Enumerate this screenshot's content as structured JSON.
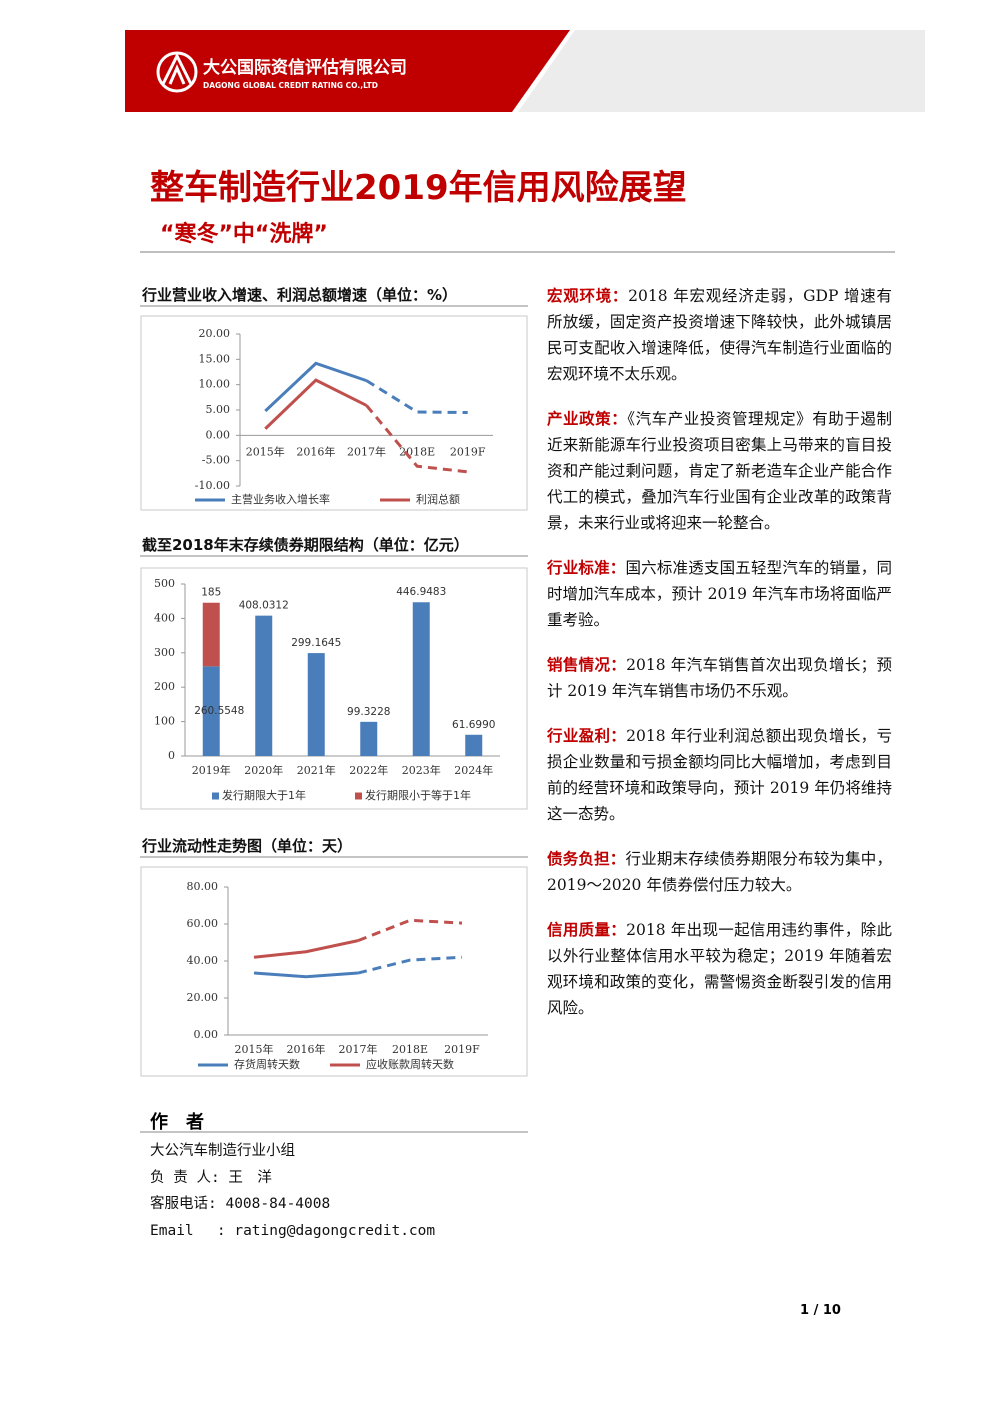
{
  "header": {
    "company_cn": "大公国际资信评估有限公司",
    "company_en": "DAGONG GLOBAL CREDIT RATING CO.,LTD"
  },
  "title": "整车制造行业2019年信用风险展望",
  "subtitle": "“寒冬”中“洗牌”",
  "chart_data": [
    {
      "type": "line",
      "title": "行业营业收入增速、利润总额增速（单位：%）",
      "categories": [
        "2015年",
        "2016年",
        "2017年",
        "2018E",
        "2019F"
      ],
      "ylim": [
        -10,
        20
      ],
      "yticks": [
        {
          "value": 20,
          "label": "20.00"
        },
        {
          "value": 15,
          "label": "15.00"
        },
        {
          "value": 10,
          "label": "10.00"
        },
        {
          "value": 5,
          "label": "5.00"
        },
        {
          "value": 0,
          "label": "0.00"
        },
        {
          "value": -5,
          "label": "-5.00"
        },
        {
          "value": -10,
          "label": "-10.00"
        }
      ],
      "dashed_after": 2,
      "series": [
        {
          "name": "主营业务收入增长率",
          "color": "#4a7ebb",
          "values": [
            4.8,
            14.2,
            10.8,
            4.6,
            4.5
          ]
        },
        {
          "name": "利润总额",
          "color": "#c0504d",
          "values": [
            1.3,
            10.9,
            5.9,
            -6.1,
            -7.2
          ]
        }
      ]
    },
    {
      "type": "stacked_bar",
      "title": "截至2018年末存续债券期限结构（单位：亿元）",
      "categories": [
        "2019年",
        "2020年",
        "2021年",
        "2022年",
        "2023年",
        "2024年"
      ],
      "ylim": [
        0,
        500
      ],
      "yticks": [
        0,
        100,
        200,
        300,
        400,
        500
      ],
      "series": [
        {
          "name": "发行期限大于1年",
          "color": "#4a7ebb",
          "values": [
            260.5548,
            408.0312,
            299.1645,
            99.3228,
            446.9483,
            61.699
          ],
          "value_labels": [
            "260.5548",
            "408.0312",
            "299.1645",
            "99.3228",
            "446.9483",
            "61.6990"
          ]
        },
        {
          "name": "发行期限小于等于1年",
          "color": "#c0504d",
          "values": [
            185,
            null,
            null,
            null,
            null,
            null
          ]
        }
      ]
    },
    {
      "type": "line",
      "title": "行业流动性走势图（单位：天）",
      "categories": [
        "2015年",
        "2016年",
        "2017年",
        "2018E",
        "2019F"
      ],
      "ylim": [
        0,
        80
      ],
      "yticks": [
        {
          "value": 80,
          "label": "80.00"
        },
        {
          "value": 60,
          "label": "60.00"
        },
        {
          "value": 40,
          "label": "40.00"
        },
        {
          "value": 20,
          "label": "20.00"
        },
        {
          "value": 0,
          "label": "0.00"
        }
      ],
      "dashed_after": 2,
      "series": [
        {
          "name": "存货周转天数",
          "color": "#4a7ebb",
          "values": [
            33.5,
            31.5,
            33.5,
            40.5,
            42
          ]
        },
        {
          "name": "应收账款周转天数",
          "color": "#c0504d",
          "values": [
            42,
            45,
            51,
            62,
            60.5
          ]
        }
      ]
    }
  ],
  "author": {
    "heading": "作　者",
    "lines": [
      "大公汽车制造行业小组",
      "负 责 人: 王　洋",
      "客服电话: 4008-84-4008",
      "Email　 : rating@dagongcredit.com"
    ]
  },
  "sections": [
    {
      "heading": "宏观环境：",
      "text": "2018 年宏观经济走弱，GDP 增速有所放缓，固定资产投资增速下降较快，此外城镇居民可支配收入增速降低，使得汽车制造行业面临的宏观环境不太乐观。"
    },
    {
      "heading": "产业政策：",
      "text": "《汽车产业投资管理规定》有助于遏制近来新能源车行业投资项目密集上马带来的盲目投资和产能过剩问题，肯定了新老造车企业产能合作代工的模式，叠加汽车行业国有企业改革的政策背景，未来行业或将迎来一轮整合。"
    },
    {
      "heading": "行业标准：",
      "text": "国六标准透支国五轻型汽车的销量，同时增加汽车成本，预计 2019 年汽车市场将面临严重考验。"
    },
    {
      "heading": "销售情况：",
      "text": "2018 年汽车销售首次出现负增长；预计 2019 年汽车销售市场仍不乐观。"
    },
    {
      "heading": "行业盈利：",
      "text": "2018 年行业利润总额出现负增长，亏损企业数量和亏损金额均同比大幅增加，考虑到目前的经营环境和政策导向，预计 2019 年仍将维持这一态势。"
    },
    {
      "heading": "债务负担：",
      "text": "行业期末存续债券期限分布较为集中，2019～2020 年债券偿付压力较大。"
    },
    {
      "heading": "信用质量：",
      "text": "2018 年出现一起信用违约事件，除此以外行业整体信用水平较为稳定；2019 年随着宏观环境和政策的变化，需警惕资金断裂引发的信用风险。"
    }
  ],
  "page_number": "1 / 10"
}
